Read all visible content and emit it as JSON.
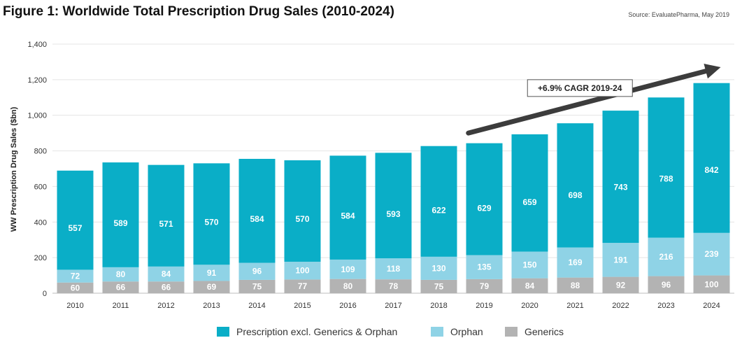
{
  "chart_data": {
    "type": "bar",
    "stacked": true,
    "title": "Figure 1: Worldwide Total Prescription Drug Sales (2010-2024)",
    "source": "Source: EvaluatePharma, May 2019",
    "ylabel": "WW Prescription Drug Sales ($bn)",
    "ylim": [
      0,
      1400
    ],
    "yticks": [
      0,
      200,
      400,
      600,
      800,
      1000,
      1200,
      1400
    ],
    "ytick_labels": [
      "0",
      "200",
      "400",
      "600",
      "800",
      "1,000",
      "1,200",
      "1,400"
    ],
    "categories": [
      "2010",
      "2011",
      "2012",
      "2013",
      "2014",
      "2015",
      "2016",
      "2017",
      "2018",
      "2019",
      "2020",
      "2021",
      "2022",
      "2023",
      "2024"
    ],
    "series": [
      {
        "name": "Generics",
        "color": "#b3b3b3",
        "values": [
          60,
          66,
          66,
          69,
          75,
          77,
          80,
          78,
          75,
          79,
          84,
          88,
          92,
          96,
          100
        ]
      },
      {
        "name": "Orphan",
        "color": "#8fd3e6",
        "values": [
          72,
          80,
          84,
          91,
          96,
          100,
          109,
          118,
          130,
          135,
          150,
          169,
          191,
          216,
          239
        ]
      },
      {
        "name": "Prescription excl. Generics & Orphan",
        "color": "#0aaec7",
        "values": [
          557,
          589,
          571,
          570,
          584,
          570,
          584,
          593,
          622,
          629,
          659,
          698,
          743,
          788,
          842
        ]
      }
    ],
    "legend_order": [
      "Prescription excl. Generics & Orphan",
      "Orphan",
      "Generics"
    ],
    "legend_position": "bottom",
    "annotation": {
      "text": "+6.9% CAGR 2019-24",
      "from": "2019",
      "to": "2024",
      "arrow_color": "#3c3c3c"
    },
    "grid": true
  }
}
